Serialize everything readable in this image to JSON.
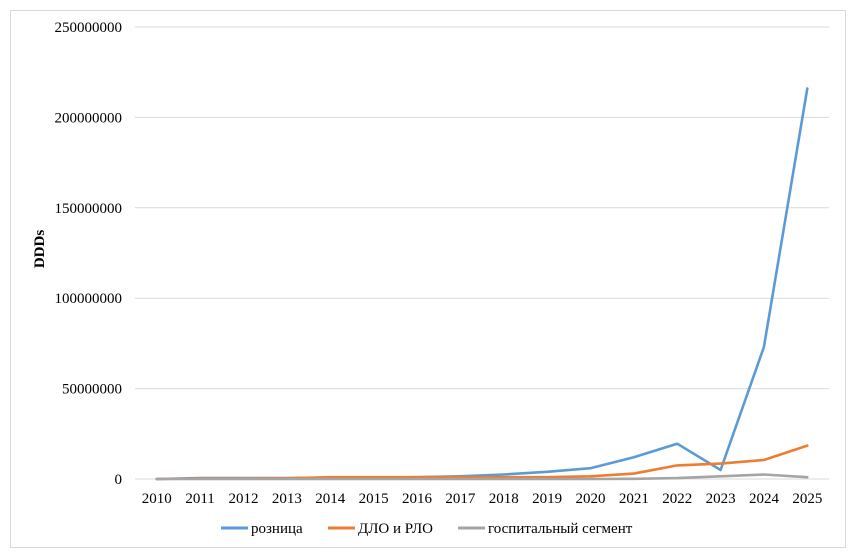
{
  "chart_data": {
    "type": "line",
    "title": "",
    "xlabel": "",
    "ylabel": "DDDs",
    "ylim": [
      0,
      250000000
    ],
    "yticks": [
      0,
      50000000,
      100000000,
      150000000,
      200000000,
      250000000
    ],
    "ytick_labels": [
      "0",
      "50000000",
      "100000000",
      "150000000",
      "200000000",
      "250000000"
    ],
    "grid": "horizontal",
    "legend_position": "bottom",
    "categories": [
      "2010",
      "2011",
      "2012",
      "2013",
      "2014",
      "2015",
      "2016",
      "2017",
      "2018",
      "2019",
      "2020",
      "2021",
      "2022",
      "2023",
      "2024",
      "2025"
    ],
    "series": [
      {
        "name": "розница",
        "color": "#5B9BD5",
        "values": [
          0,
          500000,
          500000,
          500000,
          700000,
          800000,
          1000000,
          1500000,
          2500000,
          4000000,
          6000000,
          12000000,
          19500000,
          5000000,
          73000000,
          216000000
        ]
      },
      {
        "name": "ДЛО и РЛО",
        "color": "#ED7D31",
        "values": [
          0,
          300000,
          300000,
          400000,
          1000000,
          1000000,
          1000000,
          1000000,
          1000000,
          1000000,
          1500000,
          3000000,
          7500000,
          8500000,
          10500000,
          18500000
        ]
      },
      {
        "name": "госпитальный сегмент",
        "color": "#A5A5A5",
        "values": [
          0,
          0,
          0,
          0,
          0,
          0,
          0,
          0,
          0,
          0,
          0,
          100000,
          500000,
          1500000,
          2500000,
          1000000
        ]
      }
    ]
  }
}
